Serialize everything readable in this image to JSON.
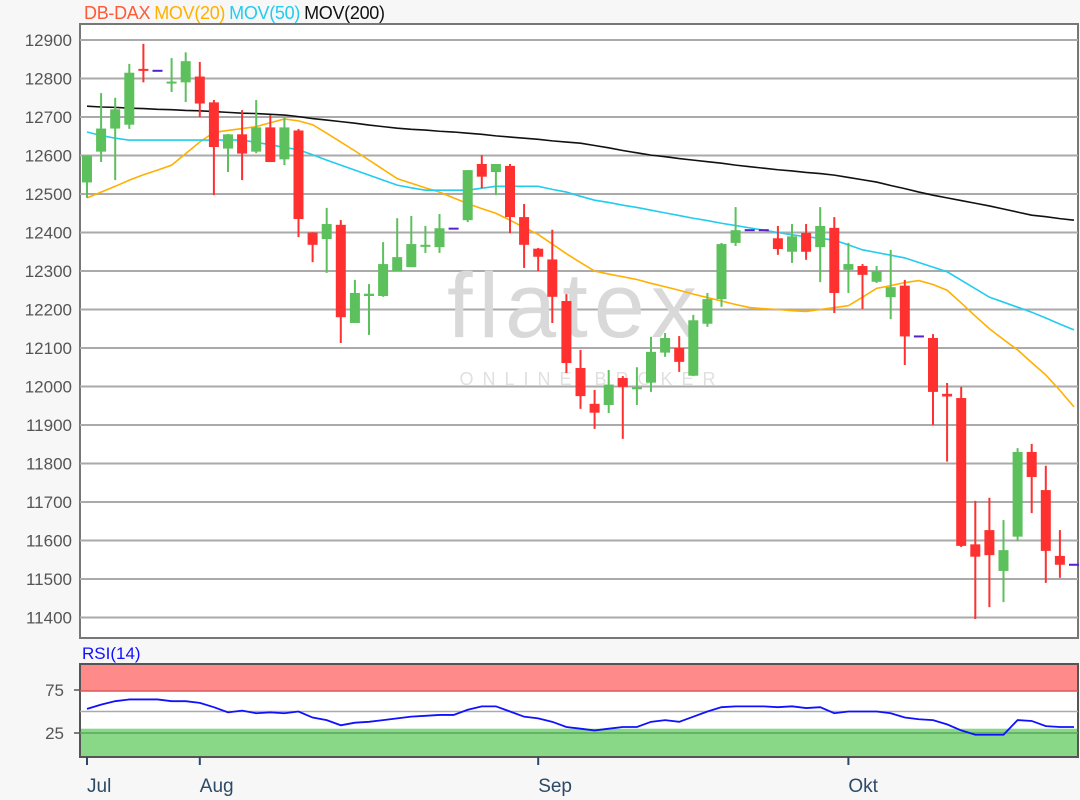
{
  "legend": {
    "instrument": {
      "label": "DB-DAX",
      "color": "#ff5a36"
    },
    "ma20": {
      "label": "MOV(20)",
      "color": "#ffb000"
    },
    "ma50": {
      "label": "MOV(50)",
      "color": "#22ccee"
    },
    "ma200": {
      "label": "MOV(200)",
      "color": "#111111"
    }
  },
  "watermark": {
    "logo": "flatex",
    "tagline": "ONLINE BROKER"
  },
  "colors": {
    "up": "#5cc05c",
    "down": "#ff3030",
    "no_trade_marker": "#5522cc",
    "rsi_line": "#1010ff",
    "overbought_band": "#ff8a8a",
    "oversold_band": "#88d888"
  },
  "chart_data": [
    {
      "type": "candlestick",
      "title": "",
      "ylim": [
        11370,
        12940
      ],
      "y_ticks": [
        12900,
        12800,
        12700,
        12600,
        12500,
        12400,
        12300,
        12200,
        12100,
        12000,
        11900,
        11800,
        11700,
        11600,
        11500,
        11400
      ],
      "x_ticks": [
        {
          "index": 0,
          "label": "Jul"
        },
        {
          "index": 8,
          "label": "Aug"
        },
        {
          "index": 32,
          "label": "Sep"
        },
        {
          "index": 54,
          "label": "Okt"
        }
      ],
      "grid": true,
      "candles_ohlc": [
        [
          12530,
          12600,
          12490,
          12600
        ],
        [
          12610,
          12762,
          12583,
          12670
        ],
        [
          12670,
          12750,
          12536,
          12720
        ],
        [
          12680,
          12838,
          12669,
          12815
        ],
        [
          12825,
          12890,
          12790,
          12820
        ],
        null,
        [
          12788,
          12853,
          12765,
          12792
        ],
        [
          12790,
          12868,
          12739,
          12845
        ],
        [
          12805,
          12843,
          12700,
          12735
        ],
        [
          12738,
          12744,
          12497,
          12622
        ],
        [
          12618,
          12656,
          12557,
          12655
        ],
        [
          12655,
          12718,
          12536,
          12605
        ],
        [
          12610,
          12744,
          12606,
          12673
        ],
        [
          12673,
          12705,
          12583,
          12583
        ],
        [
          12590,
          12700,
          12575,
          12673
        ],
        [
          12665,
          12669,
          12388,
          12435
        ],
        [
          12400,
          12401,
          12323,
          12368
        ],
        [
          12383,
          12464,
          12295,
          12422
        ],
        [
          12420,
          12432,
          12113,
          12180
        ],
        [
          12165,
          12277,
          12165,
          12243
        ],
        [
          12235,
          12266,
          12134,
          12241
        ],
        [
          12235,
          12375,
          12233,
          12318
        ],
        [
          12300,
          12437,
          12300,
          12336
        ],
        [
          12310,
          12443,
          12310,
          12370
        ],
        [
          12365,
          12417,
          12347,
          12368
        ],
        [
          12362,
          12448,
          12347,
          12411
        ],
        null,
        [
          12432,
          12562,
          12427,
          12562
        ],
        [
          12578,
          12601,
          12515,
          12545
        ],
        [
          12557,
          12578,
          12497,
          12578
        ],
        [
          12573,
          12578,
          12398,
          12440
        ],
        [
          12440,
          12474,
          12308,
          12368
        ],
        [
          12358,
          12360,
          12300,
          12337
        ],
        [
          12330,
          12407,
          12165,
          12233
        ],
        [
          12222,
          12240,
          12035,
          12061
        ],
        [
          12048,
          12095,
          11942,
          11975
        ],
        [
          11955,
          11991,
          11890,
          11932
        ],
        [
          11952,
          12043,
          11931,
          12005
        ],
        [
          12022,
          12027,
          11864,
          11999
        ],
        [
          11994,
          12050,
          11952,
          11998
        ],
        [
          12010,
          12129,
          11986,
          12090
        ],
        [
          12088,
          12139,
          12077,
          12126
        ],
        [
          12100,
          12131,
          12038,
          12064
        ],
        [
          12028,
          12186,
          12027,
          12172
        ],
        [
          12163,
          12243,
          12155,
          12227
        ],
        [
          12227,
          12373,
          12207,
          12370
        ],
        [
          12373,
          12466,
          12365,
          12406
        ],
        null,
        null,
        [
          12385,
          12417,
          12342,
          12357
        ],
        [
          12350,
          12422,
          12321,
          12390
        ],
        [
          12399,
          12422,
          12329,
          12350
        ],
        [
          12362,
          12466,
          12271,
          12417
        ],
        [
          12412,
          12440,
          12191,
          12243
        ],
        [
          12303,
          12373,
          12243,
          12318
        ],
        [
          12313,
          12318,
          12201,
          12290
        ],
        [
          12272,
          12313,
          12269,
          12300
        ],
        [
          12232,
          12355,
          12175,
          12258
        ],
        [
          12262,
          12277,
          12056,
          12130
        ],
        null,
        [
          12126,
          12136,
          11900,
          11986
        ],
        [
          11981,
          12009,
          11805,
          11974
        ],
        [
          11970,
          11999,
          11583,
          11586
        ],
        [
          11590,
          11703,
          11396,
          11558
        ],
        [
          11627,
          11711,
          11427,
          11562
        ],
        [
          11521,
          11653,
          11440,
          11575
        ],
        [
          11610,
          11840,
          11599,
          11830
        ],
        [
          11830,
          11851,
          11671,
          11765
        ],
        [
          11731,
          11794,
          11490,
          11573
        ],
        [
          11560,
          11627,
          11503,
          11537
        ],
        null
      ],
      "no_trade_markers": [
        {
          "index": 5,
          "value": 12820
        },
        {
          "index": 26,
          "value": 12410
        },
        {
          "index": 47,
          "value": 12406
        },
        {
          "index": 48,
          "value": 12406
        },
        {
          "index": 59,
          "value": 12130
        },
        {
          "index": 70,
          "value": 11537
        }
      ],
      "series": [
        {
          "name": "MOV(20)",
          "values": [
            12490,
            12505,
            12520,
            12536,
            12550,
            12562,
            12575,
            12605,
            12635,
            12660,
            12665,
            12670,
            12675,
            12685,
            12695,
            12690,
            12680,
            12658,
            12635,
            12612,
            12588,
            12564,
            12540,
            12528,
            12516,
            12505,
            12490,
            12475,
            12462,
            12450,
            12432,
            12413,
            12395,
            12370,
            12345,
            12322,
            12300,
            12292,
            12285,
            12278,
            12268,
            12259,
            12250,
            12240,
            12231,
            12222,
            12213,
            12205,
            12202,
            12200,
            12197,
            12195,
            12200,
            12205,
            12210,
            12232,
            12255,
            12262,
            12270,
            12275,
            12265,
            12250,
            12217,
            12183,
            12150,
            12122,
            12095,
            12062,
            12030,
            11990,
            11947
          ]
        },
        {
          "name": "MOV(50)",
          "values": [
            12661,
            12652,
            12645,
            12640,
            12640,
            12640,
            12640,
            12640,
            12640,
            12640,
            12640,
            12640,
            12634,
            12628,
            12621,
            12615,
            12602,
            12588,
            12575,
            12562,
            12549,
            12536,
            12523,
            12516,
            12510,
            12510,
            12510,
            12510,
            12515,
            12520,
            12520,
            12520,
            12520,
            12512,
            12505,
            12494,
            12484,
            12478,
            12471,
            12465,
            12458,
            12451,
            12444,
            12437,
            12431,
            12424,
            12418,
            12412,
            12406,
            12400,
            12394,
            12389,
            12385,
            12380,
            12368,
            12355,
            12348,
            12341,
            12334,
            12322,
            12310,
            12298,
            12276,
            12254,
            12232,
            12219,
            12206,
            12193,
            12178,
            12162,
            12147
          ]
        },
        {
          "name": "MOV(200)",
          "values": [
            12728,
            12726,
            12725,
            12723,
            12722,
            12720,
            12719,
            12717,
            12716,
            12714,
            12712,
            12710,
            12709,
            12707,
            12705,
            12701,
            12696,
            12692,
            12688,
            12684,
            12679,
            12675,
            12671,
            12668,
            12666,
            12663,
            12661,
            12658,
            12655,
            12651,
            12648,
            12645,
            12642,
            12638,
            12635,
            12632,
            12626,
            12620,
            12613,
            12607,
            12601,
            12597,
            12592,
            12588,
            12584,
            12580,
            12575,
            12571,
            12567,
            12563,
            12560,
            12556,
            12553,
            12549,
            12543,
            12537,
            12531,
            12522,
            12514,
            12505,
            12497,
            12490,
            12483,
            12476,
            12469,
            12461,
            12453,
            12445,
            12441,
            12436,
            12432
          ]
        }
      ]
    },
    {
      "type": "line",
      "title": "RSI(14)",
      "y_ticks": [
        75,
        25
      ],
      "bands": [
        {
          "from": 75,
          "to": 100,
          "kind": "overbought"
        },
        {
          "from": 0,
          "to": 30,
          "kind": "oversold"
        }
      ],
      "midline": 50,
      "series": [
        {
          "name": "RSI(14)",
          "values": [
            53,
            58,
            62,
            64,
            64,
            64,
            62,
            62,
            60,
            55,
            49,
            51,
            48,
            49,
            48,
            50,
            43,
            40,
            34,
            37,
            38,
            40,
            42,
            44,
            45,
            46,
            46,
            52,
            56,
            56,
            50,
            44,
            42,
            38,
            32,
            30,
            28,
            30,
            32,
            32,
            38,
            40,
            38,
            44,
            50,
            55,
            56,
            56,
            56,
            55,
            56,
            54,
            55,
            48,
            50,
            50,
            50,
            48,
            43,
            41,
            40,
            35,
            28,
            23,
            23,
            23,
            40,
            39,
            33,
            32,
            32
          ]
        }
      ]
    }
  ]
}
